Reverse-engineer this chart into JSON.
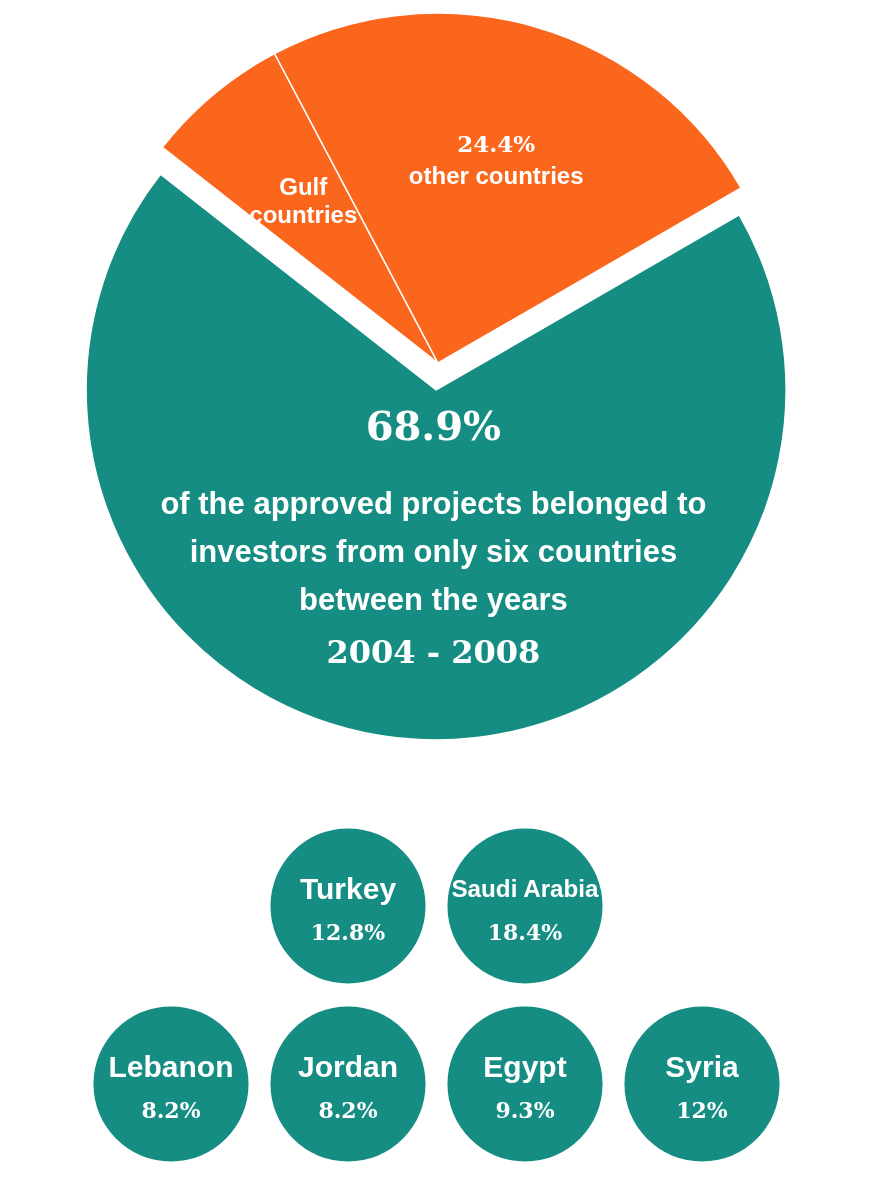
{
  "chart_data": [
    {
      "type": "pie",
      "categories": [
        null,
        "Gulf countries",
        "other countries"
      ],
      "values": [
        68.9,
        6.7,
        24.4
      ],
      "colors": [
        "#168d82",
        "#fa661c",
        "#fa661c"
      ],
      "value_labels": [
        "68.9%",
        null,
        "24.4%"
      ],
      "annotations": [
        "of the approved projects belonged to investors from only six countries between the years",
        "2004 - 2008"
      ]
    },
    {
      "type": "other",
      "categories": [
        "Turkey",
        "Saudi Arabia",
        "Lebanon",
        "Jordan",
        "Egypt",
        "Syria"
      ],
      "values": [
        12.8,
        18.4,
        8.2,
        8.2,
        9.3,
        12
      ],
      "value_labels": [
        "12.8%",
        "18.4%",
        "8.2%",
        "8.2%",
        "9.3%",
        "12%"
      ],
      "color": "#168d82"
    }
  ]
}
